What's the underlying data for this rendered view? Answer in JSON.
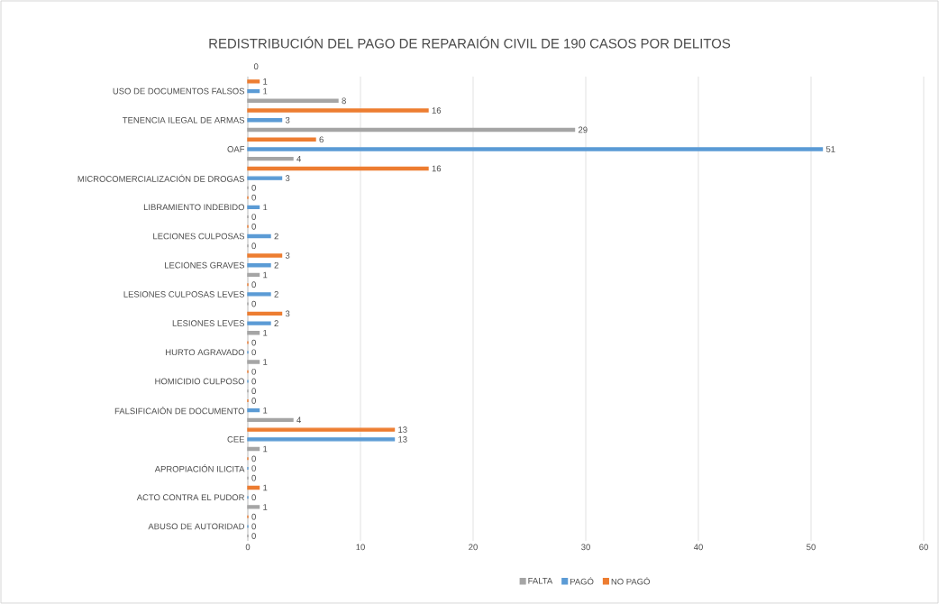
{
  "chart_data": {
    "type": "bar",
    "orientation": "horizontal",
    "title": "REDISTRIBUCIÓN DEL PAGO DE REPARAIÓN CIVIL DE 190 CASOS POR DELITOS",
    "categories": [
      "USO DE DOCUMENTOS FALSOS",
      "TENENCIA ILEGAL DE ARMAS",
      "OAF",
      "MICROCOMERCIALIZACIÓN DE DROGAS",
      "LIBRAMIENTO INDEBIDO",
      "LECIONES CULPOSAS",
      "LECIONES GRAVES",
      "LESIONES CULPOSAS LEVES",
      "LESIONES LEVES",
      "HURTO AGRAVADO",
      "HOMICIDIO CULPOSO",
      "FALSIFICAIÓN DE DOCUMENTO",
      "CEE",
      "APROPIACIÓN ILICITA",
      "ACTO CONTRA EL PUDOR",
      "ABUSO DE AUTORIDAD"
    ],
    "series": [
      {
        "name": "FALTA",
        "color": "#a5a5a5",
        "values": [
          8,
          29,
          4,
          0,
          0,
          0,
          1,
          0,
          1,
          1,
          0,
          4,
          1,
          0,
          1,
          0
        ]
      },
      {
        "name": "PAGÓ",
        "color": "#5b9bd5",
        "values": [
          1,
          3,
          51,
          3,
          1,
          2,
          2,
          2,
          2,
          0,
          0,
          1,
          13,
          0,
          0,
          0
        ]
      },
      {
        "name": "NO PAGÓ",
        "color": "#ed7d31",
        "values": [
          1,
          16,
          6,
          16,
          0,
          0,
          3,
          0,
          3,
          0,
          0,
          0,
          13,
          0,
          1,
          0
        ]
      }
    ],
    "xlim": [
      0,
      60
    ],
    "xticks": [
      0,
      10,
      20,
      30,
      40,
      50,
      60
    ],
    "grid": "x",
    "legend": "bottom",
    "data_labels": true,
    "annotations": [
      "0"
    ]
  }
}
